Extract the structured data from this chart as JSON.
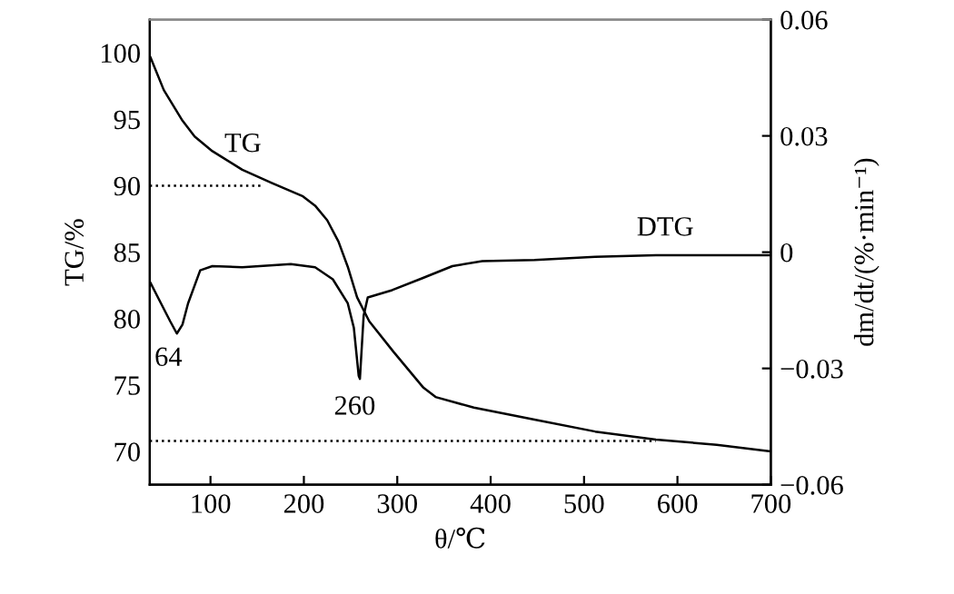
{
  "chart_data": {
    "type": "line",
    "xlabel": "θ/℃",
    "ylabel": "TG/%",
    "y2label": "dm/dt/(%·min⁻¹)",
    "xlim": [
      35,
      700
    ],
    "xticks": [
      100,
      200,
      300,
      400,
      500,
      600,
      700
    ],
    "ylim": [
      67.5,
      102.5
    ],
    "yticks": [
      70,
      75,
      80,
      85,
      90,
      95,
      100
    ],
    "y2lim": [
      -0.06,
      0.06
    ],
    "y2ticks": [
      {
        "value": -0.06,
        "label": "−0.06"
      },
      {
        "value": -0.03,
        "label": "−0.03"
      },
      0,
      0.03,
      0.06
    ],
    "grid": false,
    "legend": false,
    "series": [
      {
        "color": "#000000",
        "axis": "y",
        "line_style": "solid",
        "x": [
          35.5,
          50,
          70,
          83,
          102,
          134,
          166,
          199,
          212,
          225,
          237,
          247,
          257,
          270,
          296,
          328,
          341,
          382,
          447,
          512,
          577,
          642,
          700
        ],
        "values": [
          99.7,
          97.2,
          94.9,
          93.7,
          92.6,
          91.2,
          90.2,
          89.2,
          88.5,
          87.4,
          85.8,
          83.9,
          81.6,
          79.8,
          77.5,
          74.8,
          74.1,
          73.3,
          72.4,
          71.5,
          70.9,
          70.5,
          70.0
        ]
      },
      {
        "color": "#000000",
        "axis": "y2",
        "line_style": "solid",
        "x": [
          35.5,
          47,
          57,
          64,
          70,
          76,
          89,
          102,
          134,
          186,
          212,
          231,
          247,
          253.5,
          258.7,
          260,
          264,
          268.4,
          294.5,
          327,
          359,
          391,
          447,
          512,
          577,
          642,
          700
        ],
        "values": [
          -0.0078,
          -0.0132,
          -0.0179,
          -0.021,
          -0.0187,
          -0.0132,
          -0.0047,
          -0.0036,
          -0.0039,
          -0.0031,
          -0.0039,
          -0.007,
          -0.0132,
          -0.0195,
          -0.0319,
          -0.0327,
          -0.0164,
          -0.0117,
          -0.0098,
          -0.0067,
          -0.0036,
          -0.0023,
          -0.002,
          -0.0012,
          -0.0008,
          -0.0008,
          -0.0008
        ]
      },
      {
        "color": "#000000",
        "axis": "y",
        "line_style": "dotted",
        "x": [
          35,
          154
        ],
        "values": [
          90,
          90
        ]
      },
      {
        "color": "#000000",
        "axis": "y",
        "line_style": "dotted",
        "x": [
          35,
          577
        ],
        "values": [
          70.8,
          70.8
        ]
      }
    ],
    "annotations": [
      "TG",
      "DTG",
      "64",
      "260"
    ]
  }
}
